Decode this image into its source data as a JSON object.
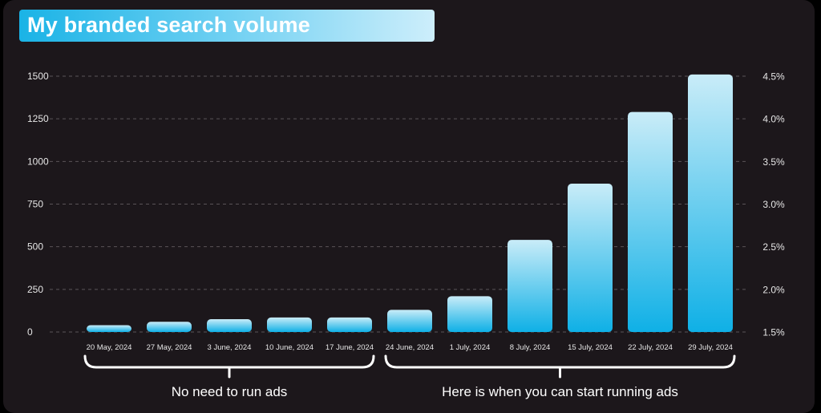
{
  "title": "My branded search volume",
  "chart_data": {
    "type": "bar",
    "title": "My branded search volume",
    "categories": [
      "20 May, 2024",
      "27 May, 2024",
      "3 June, 2024",
      "10 June, 2024",
      "17 June, 2024",
      "24 June, 2024",
      "1 July, 2024",
      "8 July, 2024",
      "15 July, 2024",
      "22 July, 2024",
      "29 July, 2024"
    ],
    "values": [
      40,
      60,
      75,
      85,
      85,
      130,
      210,
      540,
      870,
      1290,
      1510
    ],
    "ylim": [
      0,
      1500
    ],
    "yticks": [
      "1500",
      "1250",
      "1000",
      "750",
      "500",
      "250",
      "0"
    ],
    "y2ticks": [
      "4.5%",
      "4.0%",
      "3.5%",
      "3.0%",
      "2.5%",
      "2.0%",
      "1.5%"
    ],
    "grid": true,
    "annotations": [
      {
        "text": "No need to run ads",
        "from": "20 May, 2024",
        "to": "17 June, 2024"
      },
      {
        "text": "Here is when you can start running ads",
        "from": "24 June, 2024",
        "to": "29 July, 2024"
      }
    ],
    "colors": {
      "bar_top": "#c9ecf8",
      "bar_bottom": "#0fb0e6",
      "grid": "#5a5458",
      "text": "#e6e6e6",
      "bracket": "#ffffff"
    }
  }
}
